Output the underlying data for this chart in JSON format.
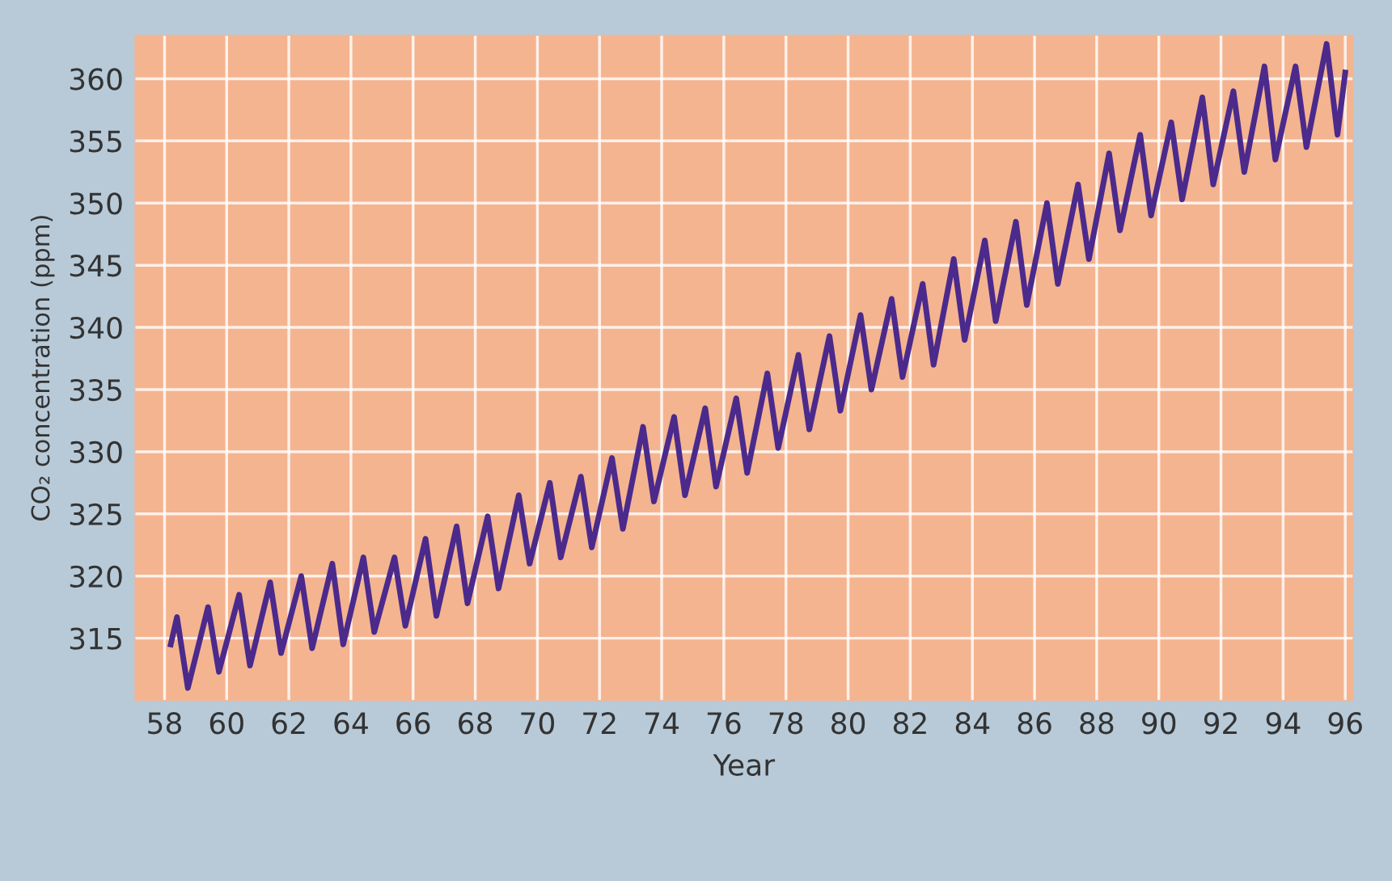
{
  "chart_data": {
    "type": "line",
    "xlabel": "Year",
    "ylabel": "CO₂ concentration (ppm)",
    "x": [
      1958.2,
      1958.4,
      1958.75,
      1959.4,
      1959.75,
      1960.4,
      1960.75,
      1961.4,
      1961.75,
      1962.4,
      1962.75,
      1963.4,
      1963.75,
      1964.4,
      1964.75,
      1965.4,
      1965.75,
      1966.4,
      1966.75,
      1967.4,
      1967.75,
      1968.4,
      1968.75,
      1969.4,
      1969.75,
      1970.4,
      1970.75,
      1971.4,
      1971.75,
      1972.4,
      1972.75,
      1973.4,
      1973.75,
      1974.4,
      1974.75,
      1975.4,
      1975.75,
      1976.4,
      1976.75,
      1977.4,
      1977.75,
      1978.4,
      1978.75,
      1979.4,
      1979.75,
      1980.4,
      1980.75,
      1981.4,
      1981.75,
      1982.4,
      1982.75,
      1983.4,
      1983.75,
      1984.4,
      1984.75,
      1985.4,
      1985.75,
      1986.4,
      1986.75,
      1987.4,
      1987.75,
      1988.4,
      1988.75,
      1989.4,
      1989.75,
      1990.4,
      1990.75,
      1991.4,
      1991.75,
      1992.4,
      1992.75,
      1993.4,
      1993.75,
      1994.4,
      1994.75,
      1995.4,
      1995.75,
      1996.0
    ],
    "series": [
      {
        "color": "#4b2a8c",
        "values": [
          314.5,
          316.7,
          311,
          317.5,
          312.3,
          318.5,
          312.8,
          319.5,
          313.8,
          320,
          314.2,
          321,
          314.5,
          321.5,
          315.5,
          321.5,
          316,
          323,
          316.8,
          324,
          317.8,
          324.8,
          319,
          326.5,
          321,
          327.5,
          321.5,
          328,
          322.3,
          329.5,
          323.8,
          332,
          326,
          332.8,
          326.5,
          333.5,
          327.2,
          334.3,
          328.3,
          336.3,
          330.3,
          337.8,
          331.8,
          339.3,
          333.3,
          341,
          335,
          342.3,
          336,
          343.5,
          337,
          345.5,
          339,
          347,
          340.5,
          348.5,
          341.8,
          350,
          343.5,
          351.5,
          345.5,
          354,
          347.8,
          355.5,
          349,
          356.5,
          350.3,
          358.5,
          351.5,
          359,
          352.5,
          361,
          353.5,
          361,
          354.5,
          362.8,
          355.5,
          360.5
        ]
      }
    ],
    "xlim": [
      1957.05,
      1996.25
    ],
    "ylim": [
      310,
      363.5
    ],
    "xticks": [
      {
        "value": 1958,
        "label": "58"
      },
      {
        "value": 1960,
        "label": "60"
      },
      {
        "value": 1962,
        "label": "62"
      },
      {
        "value": 1964,
        "label": "64"
      },
      {
        "value": 1966,
        "label": "66"
      },
      {
        "value": 1968,
        "label": "68"
      },
      {
        "value": 1970,
        "label": "70"
      },
      {
        "value": 1972,
        "label": "72"
      },
      {
        "value": 1974,
        "label": "74"
      },
      {
        "value": 1976,
        "label": "76"
      },
      {
        "value": 1978,
        "label": "78"
      },
      {
        "value": 1980,
        "label": "80"
      },
      {
        "value": 1982,
        "label": "82"
      },
      {
        "value": 1984,
        "label": "84"
      },
      {
        "value": 1986,
        "label": "86"
      },
      {
        "value": 1988,
        "label": "88"
      },
      {
        "value": 1990,
        "label": "90"
      },
      {
        "value": 1992,
        "label": "92"
      },
      {
        "value": 1994,
        "label": "94"
      },
      {
        "value": 1996,
        "label": "96"
      }
    ],
    "yticks": [
      315,
      320,
      325,
      330,
      335,
      340,
      345,
      350,
      355,
      360
    ],
    "grid": true,
    "legend": false,
    "marker": "none",
    "line_style": "solid"
  }
}
